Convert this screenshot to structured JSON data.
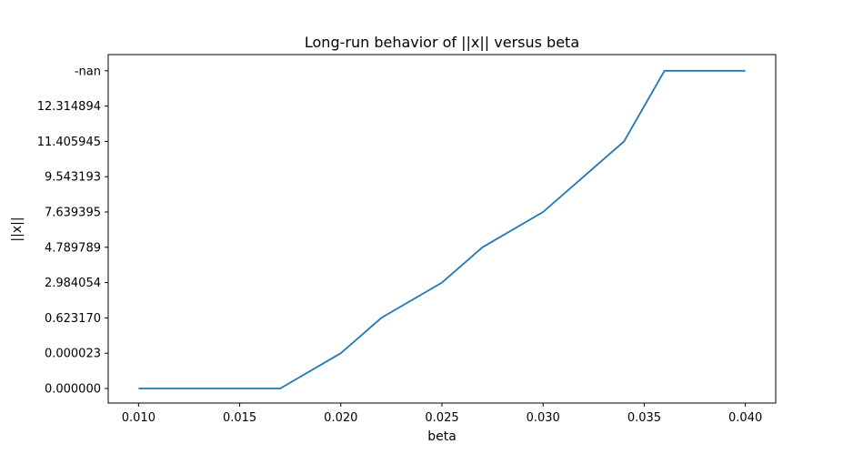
{
  "chart_data": {
    "type": "line",
    "title": "Long-run behavior of ||x|| versus beta",
    "xlabel": "beta",
    "ylabel": "||x||",
    "xlim": [
      0.0085,
      0.0415
    ],
    "x_ticks": [
      "0.010",
      "0.015",
      "0.020",
      "0.025",
      "0.030",
      "0.035",
      "0.040"
    ],
    "x_tick_values": [
      0.01,
      0.015,
      0.02,
      0.025,
      0.03,
      0.035,
      0.04
    ],
    "y_axis_type": "categorical",
    "y_categories": [
      "0.000000",
      "0.000023",
      "0.623170",
      "2.984054",
      "4.789789",
      "7.639395",
      "9.543193",
      "11.405945",
      "12.314894",
      "-nan"
    ],
    "grid": false,
    "line_color": "#1f77b4",
    "series": [
      {
        "x": [
          0.01,
          0.017,
          0.02,
          0.022,
          0.025,
          0.027,
          0.03,
          0.032,
          0.034,
          0.036,
          0.04
        ],
        "y": [
          "0.000000",
          "0.000000",
          "0.000023",
          "0.623170",
          "2.984054",
          "4.789789",
          "7.639395",
          "9.543193",
          "11.405945",
          "-nan",
          "-nan"
        ]
      }
    ]
  }
}
